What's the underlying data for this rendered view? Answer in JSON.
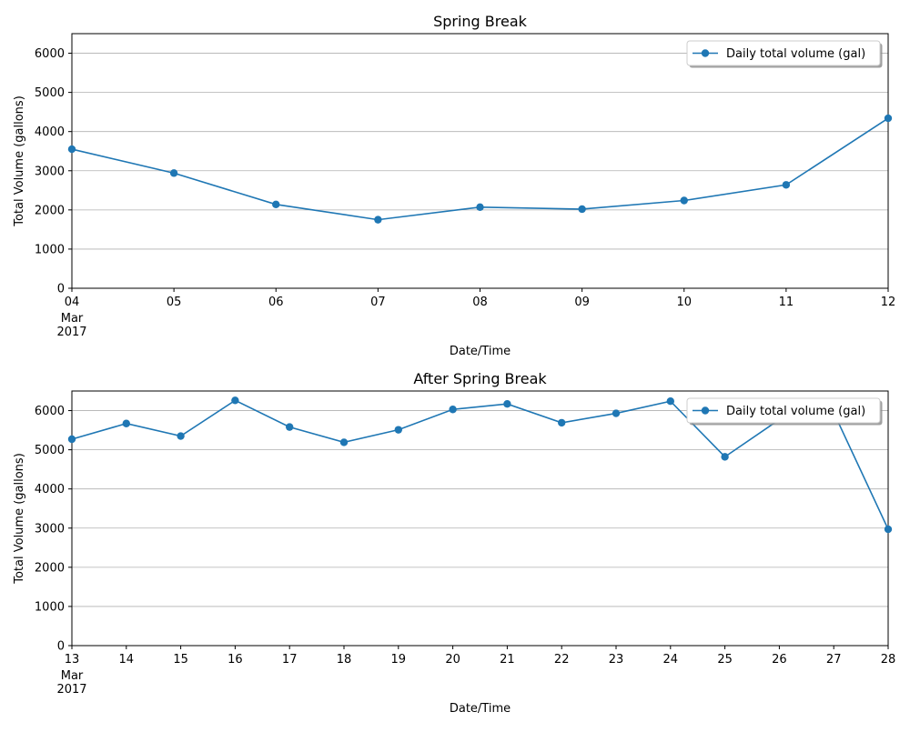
{
  "style": {
    "line_color": "#1f77b4",
    "grid_color": "#b0b0b0",
    "axis_color": "#000000"
  },
  "chart_data": [
    {
      "type": "line",
      "title": "Spring Break",
      "xlabel": "Date/Time",
      "ylabel": "Total Volume (gallons)",
      "x": [
        "04",
        "05",
        "06",
        "07",
        "08",
        "09",
        "10",
        "11",
        "12"
      ],
      "x_first_extra": [
        "Mar",
        "2017"
      ],
      "ylim": [
        0,
        6500
      ],
      "yticks": [
        0,
        1000,
        2000,
        3000,
        4000,
        5000,
        6000
      ],
      "grid": "horizontal",
      "legend_position": "top-right",
      "series": [
        {
          "name": "Daily total volume (gal)",
          "marker": "circle",
          "values": [
            3550,
            2940,
            2140,
            1750,
            2070,
            2020,
            2240,
            2640,
            4340
          ]
        }
      ]
    },
    {
      "type": "line",
      "title": "After Spring Break",
      "xlabel": "Date/Time",
      "ylabel": "Total Volume (gallons)",
      "x": [
        "13",
        "14",
        "15",
        "16",
        "17",
        "18",
        "19",
        "20",
        "21",
        "22",
        "23",
        "24",
        "25",
        "26",
        "27",
        "28"
      ],
      "x_first_extra": [
        "Mar",
        "2017"
      ],
      "ylim": [
        0,
        6500
      ],
      "yticks": [
        0,
        1000,
        2000,
        3000,
        4000,
        5000,
        6000
      ],
      "grid": "horizontal",
      "legend_position": "top-right",
      "series": [
        {
          "name": "Daily total volume (gal)",
          "marker": "circle",
          "values": [
            5270,
            5670,
            5350,
            6260,
            5580,
            5190,
            5510,
            6030,
            6170,
            5690,
            5930,
            6240,
            4820,
            5770,
            5950,
            2970
          ]
        }
      ]
    }
  ]
}
